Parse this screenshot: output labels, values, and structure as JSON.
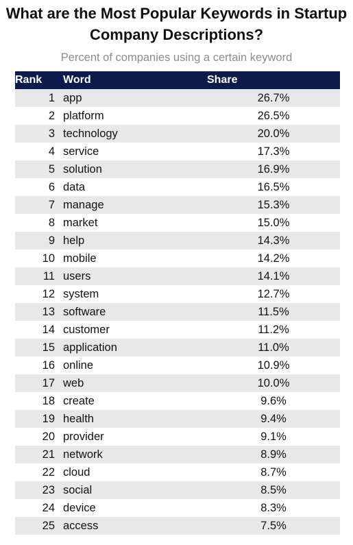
{
  "title": "What are the Most Popular Keywords in Startup Company Descriptions?",
  "subtitle": "Percent of companies using a certain keyword",
  "chart_data": {
    "type": "table",
    "title": "What are the Most Popular Keywords in Startup Company Descriptions?",
    "subtitle": "Percent of companies using a certain keyword",
    "columns": [
      "Rank",
      "Word",
      "Share"
    ],
    "header_color": "#0d1b4c",
    "stripe_color": "#e8e8e8",
    "rows": [
      {
        "rank": "1",
        "word": "app",
        "share": "26.7%"
      },
      {
        "rank": "2",
        "word": "platform",
        "share": "26.5%"
      },
      {
        "rank": "3",
        "word": "technology",
        "share": "20.0%"
      },
      {
        "rank": "4",
        "word": "service",
        "share": "17.3%"
      },
      {
        "rank": "5",
        "word": "solution",
        "share": "16.9%"
      },
      {
        "rank": "6",
        "word": "data",
        "share": "16.5%"
      },
      {
        "rank": "7",
        "word": "manage",
        "share": "15.3%"
      },
      {
        "rank": "8",
        "word": "market",
        "share": "15.0%"
      },
      {
        "rank": "9",
        "word": "help",
        "share": "14.3%"
      },
      {
        "rank": "10",
        "word": "mobile",
        "share": "14.2%"
      },
      {
        "rank": "11",
        "word": "users",
        "share": "14.1%"
      },
      {
        "rank": "12",
        "word": "system",
        "share": "12.7%"
      },
      {
        "rank": "13",
        "word": "software",
        "share": "11.5%"
      },
      {
        "rank": "14",
        "word": "customer",
        "share": "11.2%"
      },
      {
        "rank": "15",
        "word": "application",
        "share": "11.0%"
      },
      {
        "rank": "16",
        "word": "online",
        "share": "10.9%"
      },
      {
        "rank": "17",
        "word": "web",
        "share": "10.0%"
      },
      {
        "rank": "18",
        "word": "create",
        "share": "9.6%"
      },
      {
        "rank": "19",
        "word": "health",
        "share": "9.4%"
      },
      {
        "rank": "20",
        "word": "provider",
        "share": "9.1%"
      },
      {
        "rank": "21",
        "word": "network",
        "share": "8.9%"
      },
      {
        "rank": "22",
        "word": "cloud",
        "share": "8.7%"
      },
      {
        "rank": "23",
        "word": "social",
        "share": "8.5%"
      },
      {
        "rank": "24",
        "word": "device",
        "share": "8.3%"
      },
      {
        "rank": "25",
        "word": "access",
        "share": "7.5%"
      }
    ]
  }
}
